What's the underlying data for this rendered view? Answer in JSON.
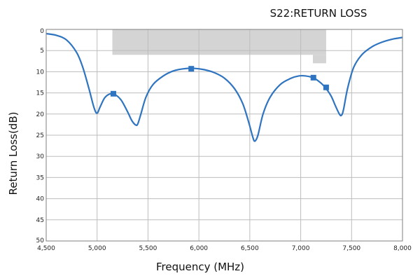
{
  "chart_data": {
    "type": "line",
    "title": "S22:RETURN LOSS",
    "xlabel": "Frequency (MHz)",
    "ylabel": "Return Loss(dB)",
    "xlim": [
      4500,
      8000
    ],
    "ylim": [
      0,
      50
    ],
    "y_inverted": true,
    "grid": true,
    "x_ticks": [
      4500,
      5000,
      5500,
      6000,
      6500,
      7000,
      7500,
      8000
    ],
    "x_tick_labels": [
      "4,500",
      "5,000",
      "5,500",
      "6,000",
      "6,500",
      "7,000",
      "7,500",
      "8,000"
    ],
    "y_ticks": [
      0,
      5,
      10,
      15,
      20,
      25,
      30,
      35,
      40,
      45,
      50
    ],
    "y_tick_labels": [
      "0",
      "5",
      "10",
      "15",
      "20",
      "25",
      "30",
      "35",
      "40",
      "45",
      "50"
    ],
    "series": [
      {
        "color": "#2f74c0",
        "x": [
          4500,
          4600,
          4700,
          4800,
          4860,
          4920,
          4970,
          5000,
          5030,
          5080,
          5150,
          5230,
          5300,
          5340,
          5380,
          5400,
          5430,
          5480,
          5550,
          5650,
          5750,
          5850,
          5950,
          6050,
          6150,
          6250,
          6350,
          6430,
          6490,
          6530,
          6550,
          6580,
          6630,
          6700,
          6800,
          6900,
          6980,
          7050,
          7130,
          7200,
          7250,
          7300,
          7340,
          7380,
          7400,
          7420,
          7460,
          7520,
          7600,
          7700,
          7800,
          7900,
          8000
        ],
        "y": [
          1,
          1.4,
          2.5,
          5.5,
          9,
          14,
          18.5,
          19.8,
          18.3,
          16,
          15.2,
          16.5,
          19.5,
          21.5,
          22.6,
          22.3,
          20,
          16,
          13,
          11,
          9.8,
          9.3,
          9.2,
          9.5,
          10.2,
          11.5,
          14,
          17.5,
          22,
          25.5,
          26.4,
          25,
          20,
          16,
          13,
          11.6,
          11,
          11,
          11.5,
          12.7,
          14,
          15.8,
          18,
          20,
          20.3,
          19,
          14,
          9,
          6,
          4.1,
          3,
          2.3,
          1.9
        ]
      }
    ],
    "markers": [
      {
        "x": 5160,
        "y": 15.2
      },
      {
        "x": 5925,
        "y": 9.3
      },
      {
        "x": 7125,
        "y": 11.4
      },
      {
        "x": 7250,
        "y": 13.7
      }
    ],
    "spec_mask": {
      "x_start": 5150,
      "x_end": 7250,
      "y_limit": 6,
      "notch_x_start": 7120,
      "notch_y_limit": 8,
      "color": "#d4d4d4"
    },
    "colors": {
      "line": "#2f74c0",
      "marker": "#2f74c0",
      "grid": "#bdbdbd",
      "frame": "#7f7f7f",
      "mask": "#d4d4d4"
    }
  }
}
